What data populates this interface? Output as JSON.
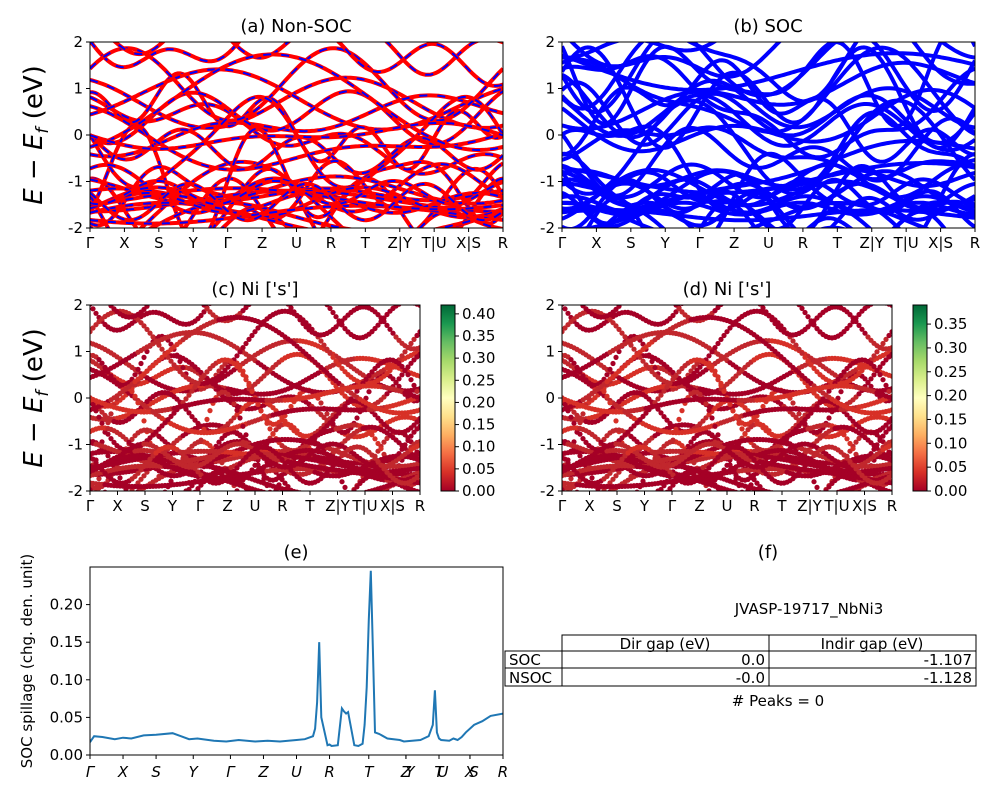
{
  "figure": {
    "panel_titles": {
      "a": "(a) Non-SOC",
      "b": "(b) SOC",
      "c": "(c)  Ni ['s']",
      "d": "(d) Ni ['s']",
      "e": "(e)",
      "f": "(f)"
    },
    "band_ylabel": "E − E_f (eV)",
    "band_ylabel_parts": {
      "E": "E",
      "minus": " − ",
      "E2": "E",
      "sub": "f",
      "unit": " (eV)"
    },
    "spillage_ylabel": "SOC spillage (chg. den. unit)",
    "kpath_labels": [
      "Γ",
      "X",
      "S",
      "Y",
      "Γ",
      "Z",
      "U",
      "R",
      "T",
      "Z|Y",
      "T|U",
      "X|S",
      "R"
    ],
    "spillage_kpath_labels": [
      "Γ",
      "X",
      "S",
      "Y",
      "Γ",
      "Z",
      "U",
      "R",
      "T",
      "Z",
      "Y",
      "T",
      "U",
      "X",
      "S",
      "R"
    ],
    "colors": {
      "nonsoc_line": "#ff0000",
      "nonsoc_dash": "#0000ff",
      "soc_line": "#0000ff",
      "spillage_line": "#1f77b4",
      "cmap": [
        "#a50026",
        "#d73027",
        "#f46d43",
        "#fdae61",
        "#fee08b",
        "#ffffbf",
        "#d9ef8b",
        "#a6d96a",
        "#66bd63",
        "#1a9850",
        "#006837"
      ]
    }
  },
  "info": {
    "material": "JVASP-19717_NbNi3",
    "table_headers": [
      "",
      "Dir gap (eV)",
      "Indir gap (eV)"
    ],
    "rows": [
      {
        "label": "SOC",
        "dir_gap": "0.0",
        "indir_gap": "-1.107"
      },
      {
        "label": "NSOC",
        "dir_gap": "-0.0",
        "indir_gap": "-1.128"
      }
    ],
    "peaks_text": "# Peaks = 0"
  },
  "chart_data": [
    {
      "id": "a",
      "type": "line",
      "title": "(a) Non-SOC",
      "ylabel": "E − E_f (eV)",
      "ylim": [
        -2,
        2
      ],
      "yticks": [
        -2,
        -1,
        0,
        1,
        2
      ],
      "xticks": [
        "Γ",
        "X",
        "S",
        "Y",
        "Γ",
        "Z",
        "U",
        "R",
        "T",
        "Z|Y",
        "T|U",
        "X|S",
        "R"
      ],
      "style": "red solid with blue dashes"
    },
    {
      "id": "b",
      "type": "line",
      "title": "(b) SOC",
      "ylim": [
        -2,
        2
      ],
      "yticks": [
        -2,
        -1,
        0,
        1,
        2
      ],
      "xticks": [
        "Γ",
        "X",
        "S",
        "Y",
        "Γ",
        "Z",
        "U",
        "R",
        "T",
        "Z|Y",
        "T|U",
        "X|S",
        "R"
      ],
      "style": "blue solid"
    },
    {
      "id": "c",
      "type": "scatter",
      "title": "(c)  Ni ['s']",
      "ylabel": "E − E_f (eV)",
      "ylim": [
        -2,
        2
      ],
      "yticks": [
        -2,
        -1,
        0,
        1,
        2
      ],
      "xticks": [
        "Γ",
        "X",
        "S",
        "Y",
        "Γ",
        "Z",
        "U",
        "R",
        "T",
        "Z|Y",
        "T|U",
        "X|S",
        "R"
      ],
      "colorbar": {
        "min": 0.0,
        "max": 0.42,
        "ticks": [
          "0.00",
          "0.05",
          "0.10",
          "0.15",
          "0.20",
          "0.25",
          "0.30",
          "0.35",
          "0.40"
        ]
      }
    },
    {
      "id": "d",
      "type": "scatter",
      "title": "(d) Ni ['s']",
      "ylim": [
        -2,
        2
      ],
      "yticks": [
        -2,
        -1,
        0,
        1,
        2
      ],
      "xticks": [
        "Γ",
        "X",
        "S",
        "Y",
        "Γ",
        "Z",
        "U",
        "R",
        "T",
        "Z|Y",
        "T|U",
        "X|S",
        "R"
      ],
      "colorbar": {
        "min": 0.0,
        "max": 0.39,
        "ticks": [
          "0.00",
          "0.05",
          "0.10",
          "0.15",
          "0.20",
          "0.25",
          "0.30",
          "0.35"
        ]
      }
    },
    {
      "id": "e",
      "type": "line",
      "title": "(e)",
      "ylabel": "SOC spillage (chg. den. unit)",
      "ylim": [
        0,
        0.25
      ],
      "yticks": [
        "0.00",
        "0.05",
        "0.10",
        "0.15",
        "0.20"
      ],
      "xlim": [
        0,
        1
      ],
      "xticks": [
        "Γ",
        "X",
        "S",
        "Y",
        "Γ",
        "Z",
        "U",
        "R",
        "T",
        "Z",
        "Y",
        "T",
        "U",
        "X",
        "S",
        "R"
      ],
      "x": [
        0.0,
        0.01,
        0.03,
        0.06,
        0.08,
        0.1,
        0.13,
        0.16,
        0.2,
        0.22,
        0.24,
        0.26,
        0.3,
        0.33,
        0.36,
        0.4,
        0.43,
        0.46,
        0.5,
        0.52,
        0.54,
        0.545,
        0.55,
        0.555,
        0.56,
        0.575,
        0.58,
        0.585,
        0.6,
        0.61,
        0.615,
        0.62,
        0.625,
        0.64,
        0.65,
        0.66,
        0.665,
        0.67,
        0.675,
        0.68,
        0.685,
        0.69,
        0.7,
        0.72,
        0.75,
        0.76,
        0.8,
        0.82,
        0.83,
        0.835,
        0.84,
        0.845,
        0.85,
        0.87,
        0.88,
        0.89,
        0.9,
        0.91,
        0.93,
        0.95,
        0.97,
        1.0
      ],
      "y": [
        0.017,
        0.025,
        0.024,
        0.021,
        0.023,
        0.022,
        0.026,
        0.027,
        0.029,
        0.025,
        0.021,
        0.022,
        0.019,
        0.018,
        0.02,
        0.018,
        0.019,
        0.018,
        0.02,
        0.021,
        0.025,
        0.035,
        0.07,
        0.15,
        0.05,
        0.013,
        0.014,
        0.012,
        0.013,
        0.062,
        0.058,
        0.055,
        0.057,
        0.013,
        0.012,
        0.015,
        0.04,
        0.09,
        0.18,
        0.245,
        0.14,
        0.03,
        0.028,
        0.022,
        0.02,
        0.018,
        0.02,
        0.025,
        0.04,
        0.086,
        0.03,
        0.022,
        0.02,
        0.019,
        0.022,
        0.02,
        0.024,
        0.03,
        0.04,
        0.045,
        0.052,
        0.055
      ]
    }
  ]
}
